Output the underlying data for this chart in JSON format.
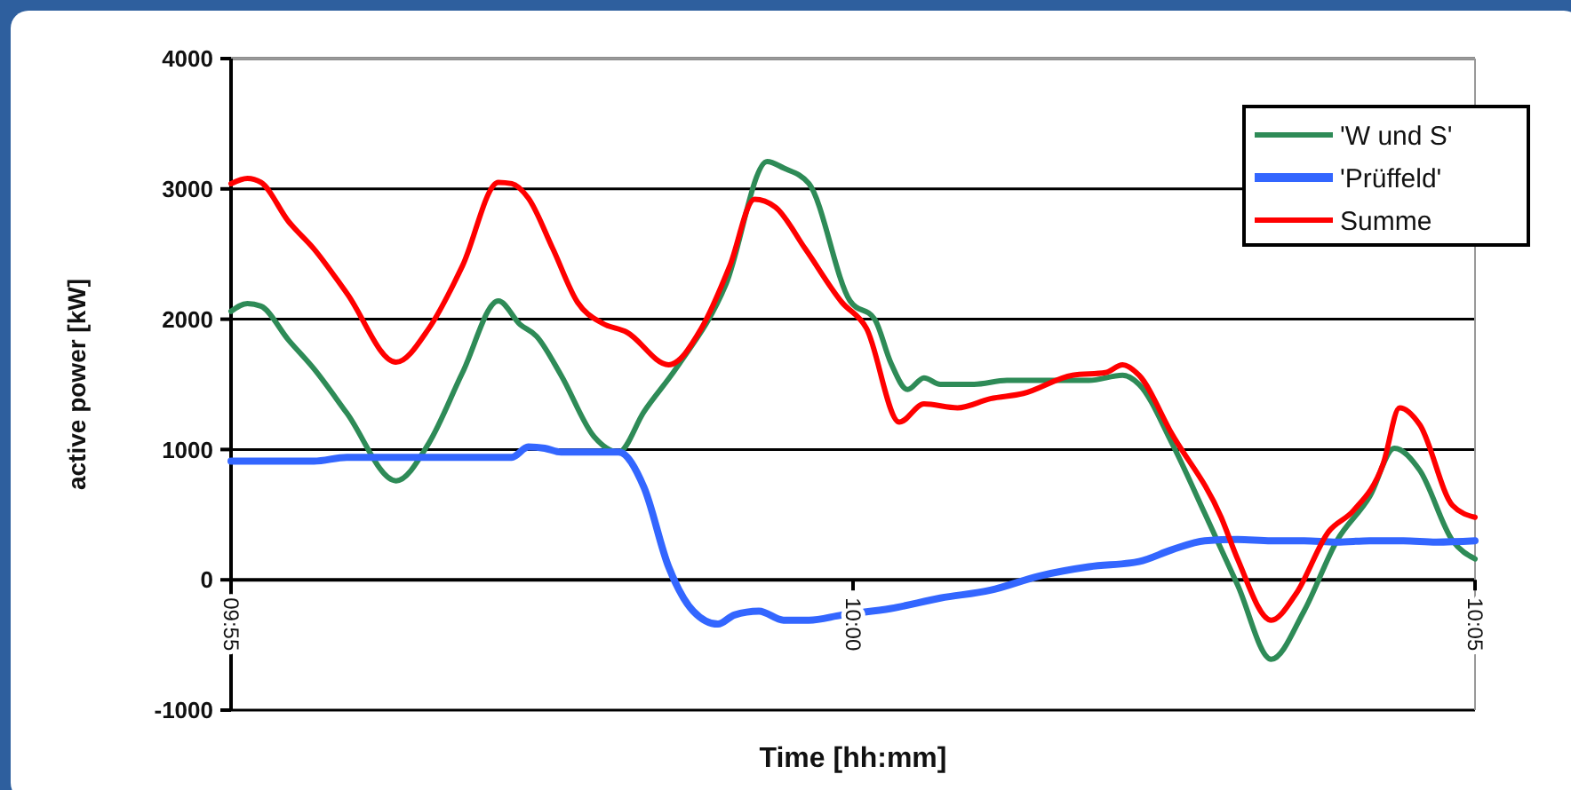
{
  "chart_data": {
    "type": "line",
    "xlabel": "Time [hh:mm]",
    "ylabel": "active power [kW]",
    "xlim": [
      9.9167,
      10.0833
    ],
    "xticks": [
      {
        "value": 9.9167,
        "label": "09:55"
      },
      {
        "value": 10,
        "label": "10:00"
      },
      {
        "value": 10.0833,
        "label": "10:05"
      }
    ],
    "ylim": [
      -1000,
      4000
    ],
    "yticks": [
      -1000,
      0,
      1000,
      2000,
      3000,
      4000
    ],
    "grid": "y",
    "legend": "top right",
    "line_style": "solid",
    "marker": "none",
    "series": [
      {
        "name": "'W und S'",
        "color": "#2e8b57",
        "x": [
          9.9167,
          9.9189,
          9.9207,
          9.9244,
          9.9278,
          9.9322,
          9.9388,
          9.9432,
          9.9477,
          9.9525,
          9.9554,
          9.9576,
          9.9609,
          9.9653,
          9.9686,
          9.972,
          9.9764,
          9.983,
          9.9885,
          9.9907,
          9.9941,
          9.9996,
          10.0029,
          10.0051,
          10.0073,
          10.0095,
          10.0117,
          10.0162,
          10.0206,
          10.025,
          10.0316,
          10.0361,
          10.0383,
          10.0427,
          10.0471,
          10.0515,
          10.056,
          10.0604,
          10.0648,
          10.0692,
          10.0725,
          10.0759,
          10.0803,
          10.0833
        ],
        "values": [
          2060,
          2120,
          2100,
          1840,
          1620,
          1280,
          760,
          1050,
          1590,
          2140,
          1960,
          1870,
          1570,
          1100,
          980,
          1290,
          1630,
          2270,
          3210,
          3160,
          3040,
          2140,
          2000,
          1660,
          1460,
          1550,
          1500,
          1500,
          1530,
          1530,
          1530,
          1570,
          1500,
          1050,
          510,
          -40,
          -610,
          -240,
          300,
          640,
          1010,
          840,
          300,
          160
        ]
      },
      {
        "name": "'Prüffeld'",
        "color": "#3366ff",
        "x": [
          9.9167,
          9.9278,
          9.9322,
          9.9543,
          9.9565,
          9.9587,
          9.9609,
          9.9653,
          9.9686,
          9.972,
          9.9753,
          9.9786,
          9.9819,
          9.9841,
          9.9874,
          9.9907,
          9.9941,
          9.9985,
          10.0051,
          10.0117,
          10.0184,
          10.025,
          10.0316,
          10.0383,
          10.0427,
          10.0471,
          10.0515,
          10.056,
          10.0604,
          10.0648,
          10.0692,
          10.0737,
          10.0781,
          10.0833
        ],
        "values": [
          910,
          910,
          940,
          940,
          1020,
          1010,
          980,
          980,
          980,
          710,
          100,
          -240,
          -340,
          -270,
          -240,
          -310,
          -310,
          -270,
          -220,
          -140,
          -80,
          30,
          100,
          140,
          230,
          300,
          310,
          300,
          300,
          290,
          300,
          300,
          290,
          300
        ]
      },
      {
        "name": "Summe",
        "color": "#ff0000",
        "x": [
          9.9167,
          9.9189,
          9.9207,
          9.9244,
          9.9278,
          9.9322,
          9.9388,
          9.9432,
          9.9477,
          9.9525,
          9.9543,
          9.9565,
          9.9598,
          9.9631,
          9.9664,
          9.9697,
          9.9753,
          9.9797,
          9.9835,
          9.9868,
          9.9896,
          9.9936,
          9.9985,
          10.0018,
          10.0062,
          10.0095,
          10.014,
          10.0184,
          10.0228,
          10.0294,
          10.0338,
          10.0361,
          10.0383,
          10.0427,
          10.0493,
          10.0515,
          10.056,
          10.0593,
          10.0637,
          10.067,
          10.071,
          10.0732,
          10.0759,
          10.0803,
          10.0833
        ],
        "values": [
          3040,
          3080,
          3050,
          2750,
          2540,
          2200,
          1670,
          1930,
          2410,
          3050,
          3040,
          2930,
          2540,
          2130,
          1970,
          1900,
          1650,
          1930,
          2410,
          2920,
          2860,
          2540,
          2130,
          1930,
          1210,
          1350,
          1320,
          1390,
          1430,
          1570,
          1590,
          1650,
          1570,
          1120,
          480,
          160,
          -310,
          -110,
          370,
          530,
          890,
          1320,
          1190,
          570,
          480
        ]
      }
    ]
  }
}
